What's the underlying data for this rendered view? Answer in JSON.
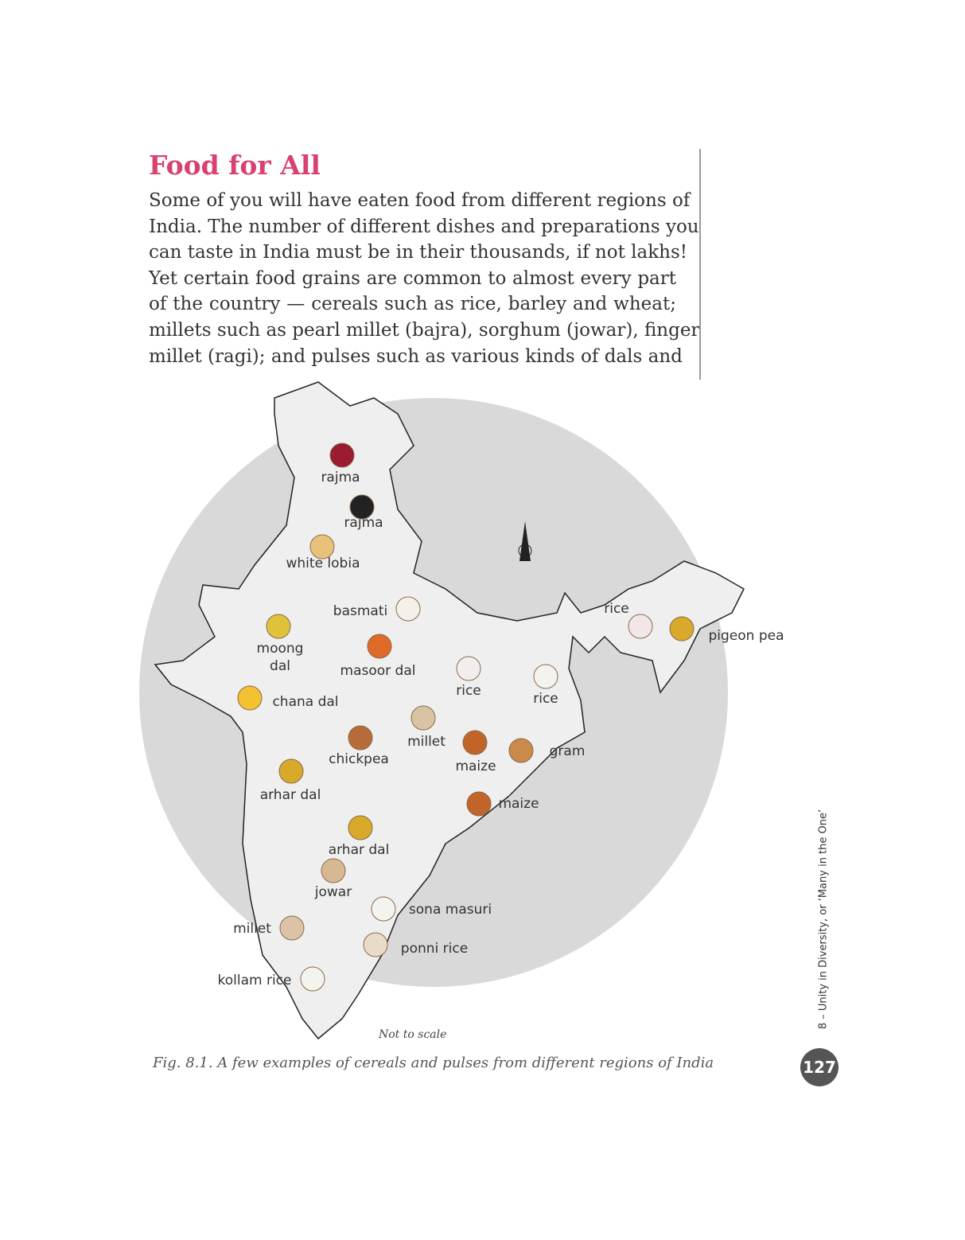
{
  "heading": "Food for All",
  "paragraph": [
    "Some of you will have eaten food from different regions of",
    "India. The number of different dishes and preparations you",
    "can taste in India must be in their thousands, if not lakhs!",
    "Yet certain food grains are common to almost every part",
    "of the country — cereals such as rice, barley and wheat;",
    "millets such as pearl millet (bajra), sorghum (jowar), finger",
    "millet (ragi); and pulses such as various kinds of dals and"
  ],
  "map": {
    "labels": [
      "rajma",
      "rajma",
      "white lobia",
      "basmati",
      "moong dal",
      "masoor dal",
      "rice",
      "rice",
      "chana dal",
      "millet",
      "chickpea",
      "maize",
      "gram",
      "arhar dal",
      "maize",
      "arhar dal",
      "jowar",
      "sona masuri",
      "millet",
      "ponni rice",
      "kollam rice",
      "rice",
      "pigeon pea"
    ],
    "note": "Not to scale"
  },
  "caption": "Fig. 8.1. A few examples of cereals and pulses from different regions of India",
  "side_text": "8 – Unity in Diversity, or ‘Many in the One’",
  "page_number": "127"
}
